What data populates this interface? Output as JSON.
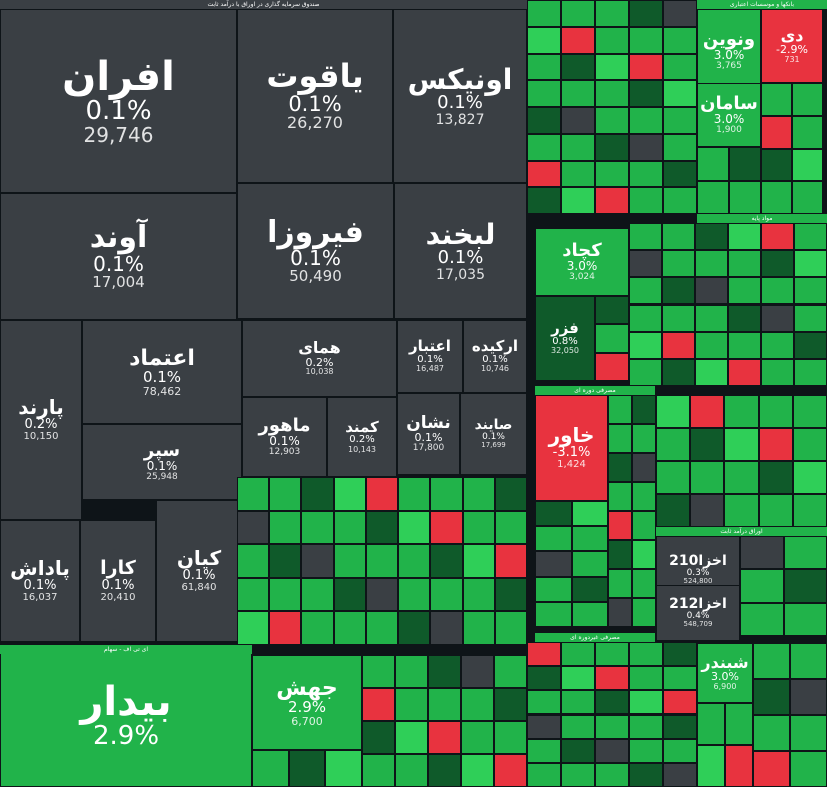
{
  "colors": {
    "background": "#0e1418",
    "neutral": "#3a3f44",
    "green": "#21b34a",
    "bright_green": "#2fcf58",
    "dark_green": "#0f5a2a",
    "red": "#e8333f",
    "dark_red": "#6b2e35"
  },
  "icons": {
    "zoom": "corner-arc-zoom-icon"
  },
  "chart_data": {
    "type": "heatmap",
    "title": "",
    "sectors": [
      "صندوق سرمایه گذاری در اوراق با درآمد ثابت",
      "ای تی اف - سهام",
      "بانکها و موسسات اعتباری",
      "مواد پایه",
      "مصرفی دوره ای",
      "اوراق درآمد ثابت",
      "مصرفی غیردوره ای"
    ],
    "tiles": [
      {
        "name": "افران",
        "change": "0.1%",
        "value": "29,746",
        "sector": 0
      },
      {
        "name": "یاقوت",
        "change": "0.1%",
        "value": "26,270",
        "sector": 0
      },
      {
        "name": "اونیکس",
        "change": "0.1%",
        "value": "13,827",
        "sector": 0
      },
      {
        "name": "آوند",
        "change": "0.1%",
        "value": "17,004",
        "sector": 0
      },
      {
        "name": "فیروزا",
        "change": "0.1%",
        "value": "50,490",
        "sector": 0
      },
      {
        "name": "لبخند",
        "change": "0.1%",
        "value": "17,035",
        "sector": 0
      },
      {
        "name": "اعتماد",
        "change": "0.1%",
        "value": "78,462",
        "sector": 0
      },
      {
        "name": "همای",
        "change": "0.2%",
        "value": "10,038",
        "sector": 0
      },
      {
        "name": "اعتبار",
        "change": "0.1%",
        "value": "16,487",
        "sector": 0
      },
      {
        "name": "ارکیده",
        "change": "0.1%",
        "value": "10,746",
        "sector": 0
      },
      {
        "name": "پارند",
        "change": "0.2%",
        "value": "10,150",
        "sector": 0
      },
      {
        "name": "سپر",
        "change": "0.1%",
        "value": "25,948",
        "sector": 0
      },
      {
        "name": "ماهور",
        "change": "0.1%",
        "value": "12,903",
        "sector": 0
      },
      {
        "name": "کمند",
        "change": "0.2%",
        "value": "10,143",
        "sector": 0
      },
      {
        "name": "نشان",
        "change": "0.1%",
        "value": "17,800",
        "sector": 0
      },
      {
        "name": "صایند",
        "change": "0.1%",
        "value": "17,699",
        "sector": 0
      },
      {
        "name": "پاداش",
        "change": "0.1%",
        "value": "16,037",
        "sector": 0
      },
      {
        "name": "کارا",
        "change": "0.1%",
        "value": "20,410",
        "sector": 0
      },
      {
        "name": "کیان",
        "change": "0.1%",
        "value": "61,840",
        "sector": 0
      },
      {
        "name": "بیدار",
        "change": "2.9%",
        "value": "",
        "sector": 1
      },
      {
        "name": "جهش",
        "change": "2.9%",
        "value": "6,700",
        "sector": 1
      },
      {
        "name": "ونوین",
        "change": "3.0%",
        "value": "3,765",
        "sector": 2
      },
      {
        "name": "دی",
        "change": "-2.9%",
        "value": "731",
        "sector": 2
      },
      {
        "name": "سامان",
        "change": "3.0%",
        "value": "1,900",
        "sector": 2
      },
      {
        "name": "کچاد",
        "change": "3.0%",
        "value": "3,024",
        "sector": 3
      },
      {
        "name": "فزر",
        "change": "0.8%",
        "value": "32,050",
        "sector": 3
      },
      {
        "name": "خاور",
        "change": "-3.1%",
        "value": "1,424",
        "sector": 4
      },
      {
        "name": "اخزا210",
        "change": "0.3%",
        "value": "524,800",
        "sector": 5
      },
      {
        "name": "اخزا212",
        "change": "0.4%",
        "value": "548,709",
        "sector": 5
      },
      {
        "name": "شبندر",
        "change": "3.0%",
        "value": "6,900",
        "sector": 6
      }
    ]
  }
}
